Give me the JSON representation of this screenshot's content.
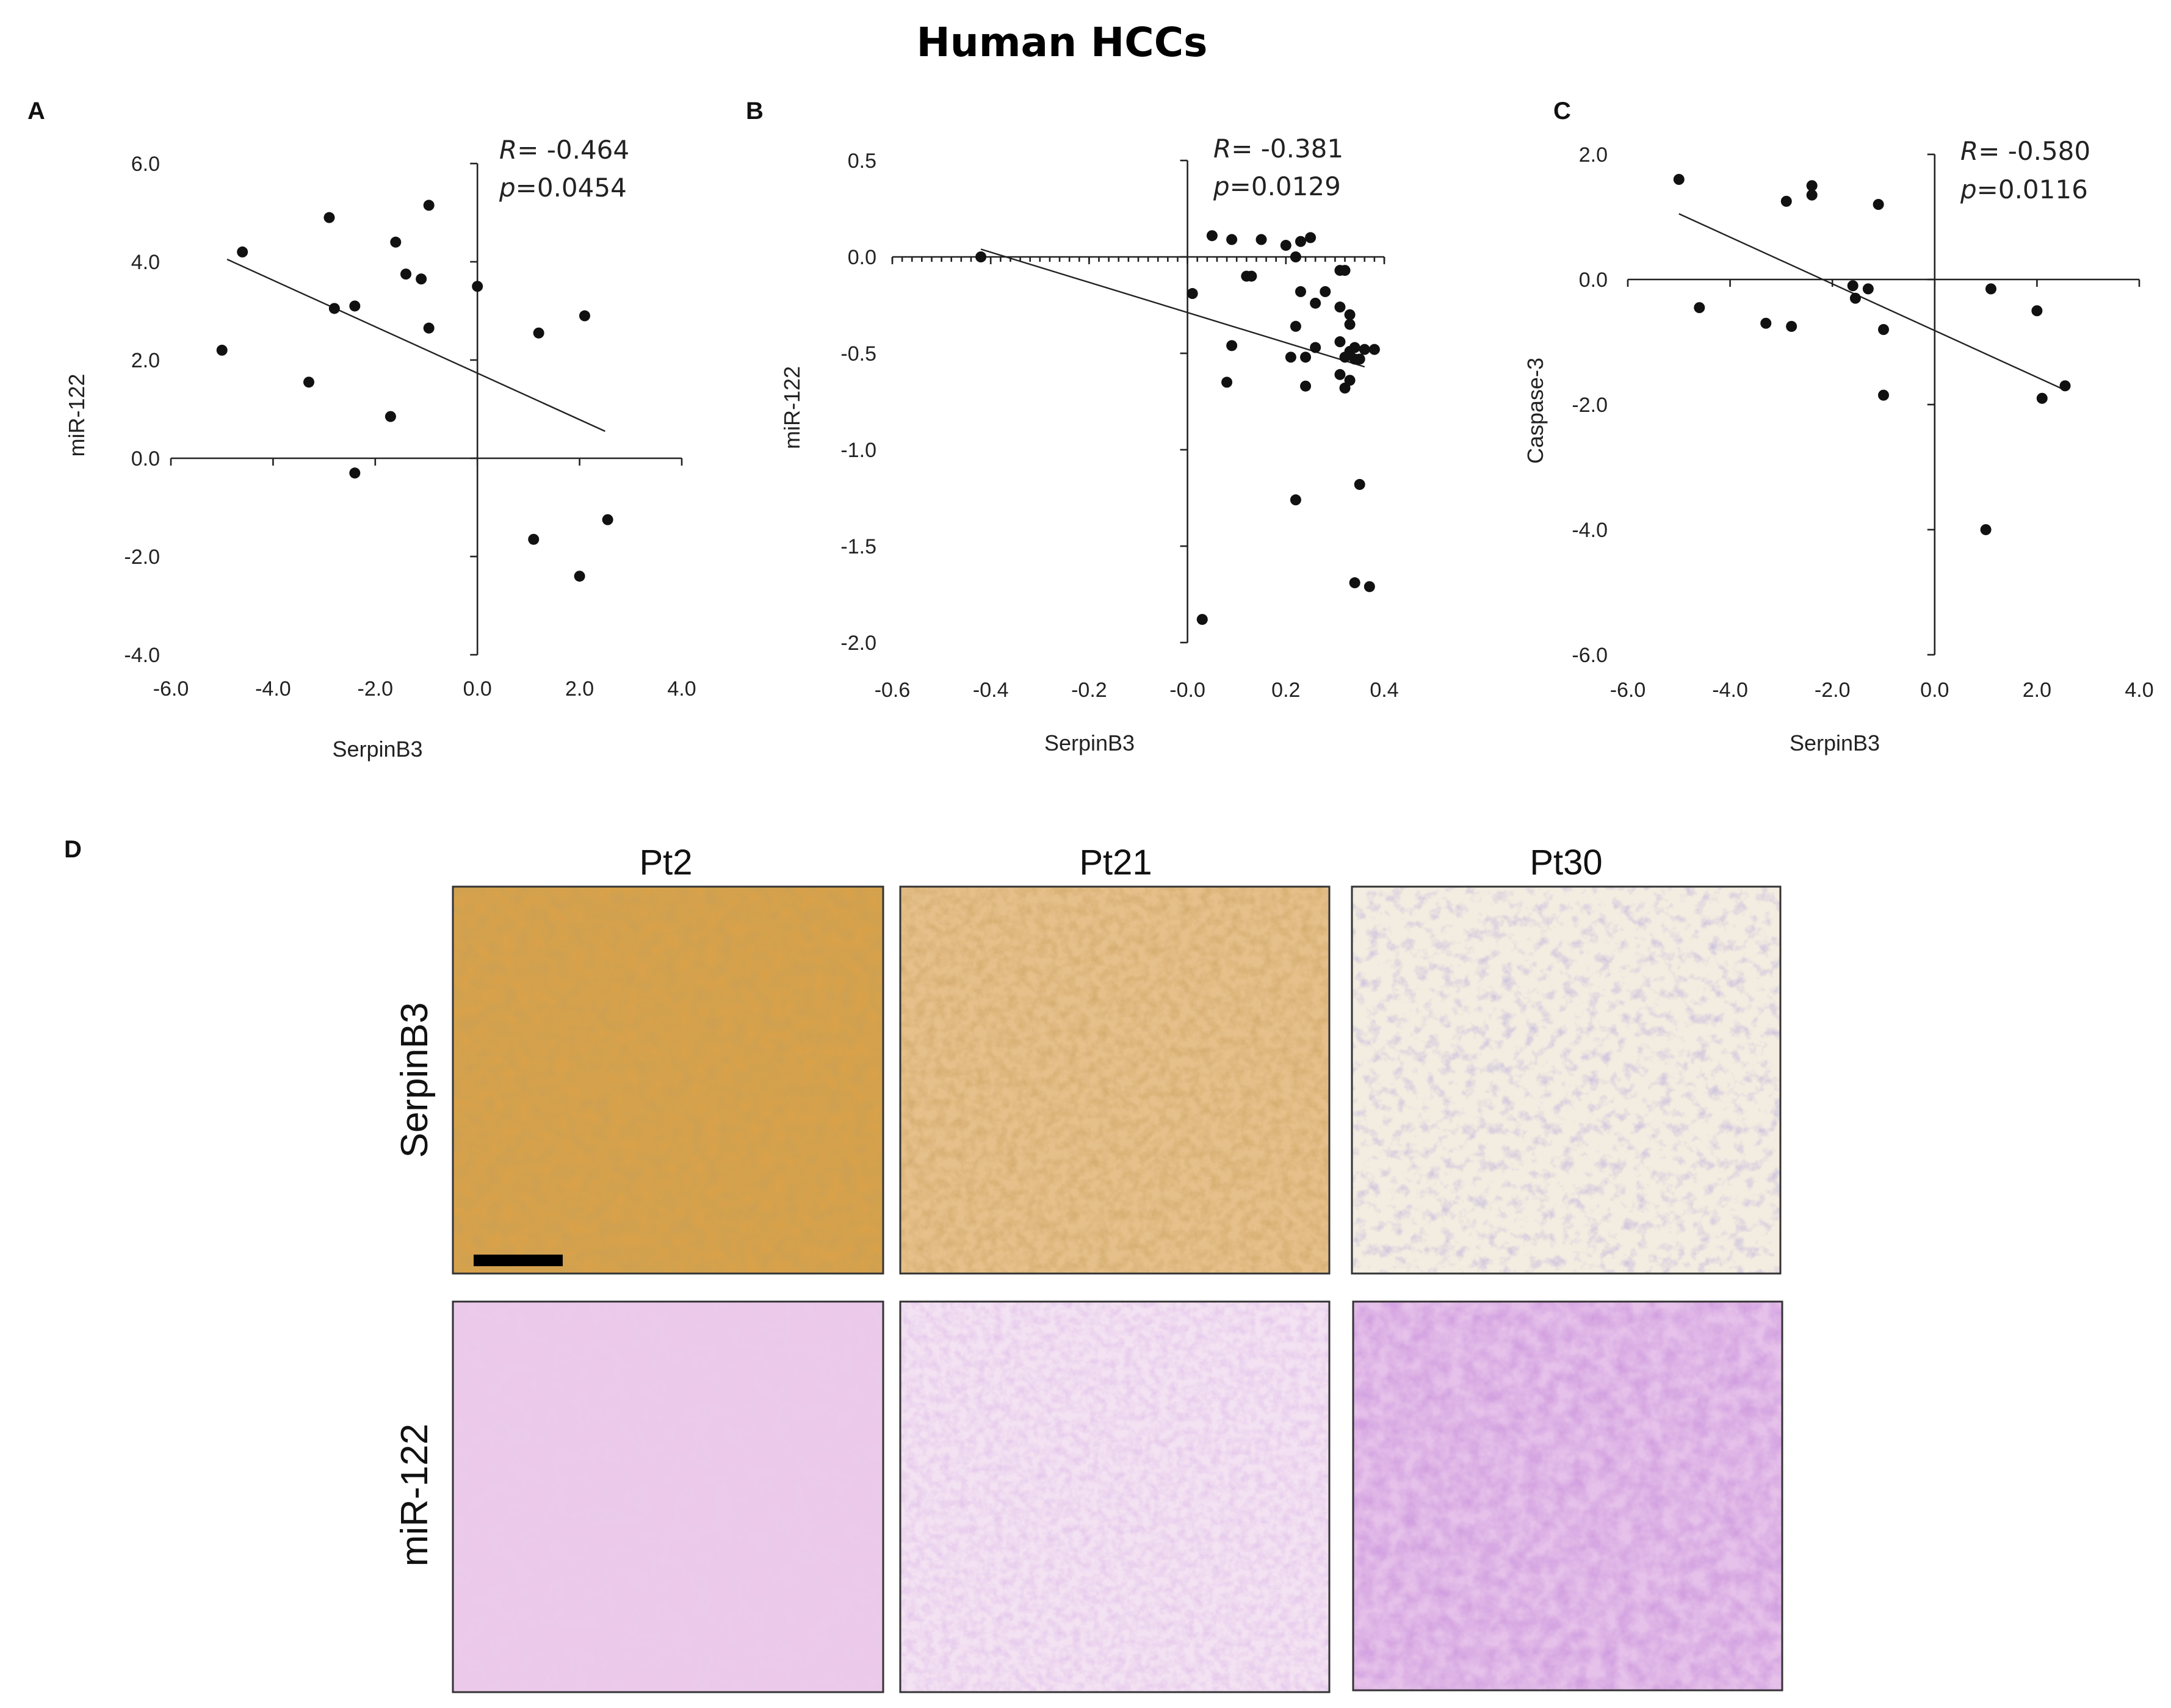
{
  "figure_title": "Human HCCs",
  "chart_data": [
    {
      "type": "scatter",
      "panel": "A",
      "title": "",
      "xlabel": "SerpinB3",
      "ylabel": "miR-122",
      "xlim": [
        -6.0,
        4.0
      ],
      "ylim": [
        -4.0,
        6.0
      ],
      "xticks": [
        "-6.0",
        "-4.0",
        "-2.0",
        "0.0",
        "2.0",
        "4.0"
      ],
      "xtick_values": [
        -6,
        -4,
        -2,
        0,
        2,
        4
      ],
      "yticks": [
        "6.0",
        "4.0",
        "2.0",
        "0.0",
        "-2.0",
        "-4.0"
      ],
      "ytick_values": [
        6,
        4,
        2,
        0,
        -2,
        -4
      ],
      "stats": {
        "r_label": "R",
        "r_value": "= -0.464",
        "p_label": "p",
        "p_value": "=0.0454"
      },
      "points": [
        {
          "x": -4.6,
          "y": 4.2
        },
        {
          "x": -2.9,
          "y": 4.9
        },
        {
          "x": -1.6,
          "y": 4.4
        },
        {
          "x": -0.95,
          "y": 5.15
        },
        {
          "x": -1.4,
          "y": 3.75
        },
        {
          "x": -1.1,
          "y": 3.65
        },
        {
          "x": 0.0,
          "y": 3.5
        },
        {
          "x": -2.8,
          "y": 3.05
        },
        {
          "x": -2.4,
          "y": 3.1
        },
        {
          "x": -0.95,
          "y": 2.65
        },
        {
          "x": 1.2,
          "y": 2.55
        },
        {
          "x": 2.1,
          "y": 2.9
        },
        {
          "x": -5.0,
          "y": 2.2
        },
        {
          "x": -3.3,
          "y": 1.55
        },
        {
          "x": -1.7,
          "y": 0.85
        },
        {
          "x": -2.4,
          "y": -0.3
        },
        {
          "x": 1.1,
          "y": -1.65
        },
        {
          "x": 2.55,
          "y": -1.25
        },
        {
          "x": 2.0,
          "y": -2.4
        }
      ],
      "fit": {
        "x1": -4.9,
        "y1": 4.05,
        "x2": 2.5,
        "y2": 0.55
      }
    },
    {
      "type": "scatter",
      "panel": "B",
      "title": "",
      "xlabel": "SerpinB3",
      "ylabel": "miR-122",
      "xlim": [
        -0.6,
        0.4
      ],
      "ylim": [
        -2.0,
        0.5
      ],
      "xticks": [
        "-0.6",
        "-0.4",
        "-0.2",
        "-0.0",
        "0.2",
        "0.4"
      ],
      "xtick_values": [
        -0.6,
        -0.4,
        -0.2,
        0.0,
        0.2,
        0.4
      ],
      "yticks": [
        "0.5",
        "0.0",
        "-0.5",
        "-1.0",
        "-1.5",
        "-2.0"
      ],
      "ytick_values": [
        0.5,
        0.0,
        -0.5,
        -1.0,
        -1.5,
        -2.0
      ],
      "stats": {
        "r_label": "R",
        "r_value": "= -0.381",
        "p_label": "p",
        "p_value": "=0.0129"
      },
      "points": [
        {
          "x": -0.42,
          "y": 0.0
        },
        {
          "x": 0.05,
          "y": 0.11
        },
        {
          "x": 0.09,
          "y": 0.09
        },
        {
          "x": 0.15,
          "y": 0.09
        },
        {
          "x": 0.2,
          "y": 0.06
        },
        {
          "x": 0.23,
          "y": 0.08
        },
        {
          "x": 0.25,
          "y": 0.1
        },
        {
          "x": 0.22,
          "y": 0.0
        },
        {
          "x": 0.01,
          "y": -0.19
        },
        {
          "x": 0.12,
          "y": -0.1
        },
        {
          "x": 0.13,
          "y": -0.1
        },
        {
          "x": 0.23,
          "y": -0.18
        },
        {
          "x": 0.28,
          "y": -0.18
        },
        {
          "x": 0.31,
          "y": -0.07
        },
        {
          "x": 0.32,
          "y": -0.07
        },
        {
          "x": 0.26,
          "y": -0.24
        },
        {
          "x": 0.31,
          "y": -0.26
        },
        {
          "x": 0.33,
          "y": -0.3
        },
        {
          "x": 0.33,
          "y": -0.35
        },
        {
          "x": 0.22,
          "y": -0.36
        },
        {
          "x": 0.09,
          "y": -0.46
        },
        {
          "x": 0.24,
          "y": -0.52
        },
        {
          "x": 0.26,
          "y": -0.47
        },
        {
          "x": 0.31,
          "y": -0.44
        },
        {
          "x": 0.34,
          "y": -0.47
        },
        {
          "x": 0.36,
          "y": -0.48
        },
        {
          "x": 0.38,
          "y": -0.48
        },
        {
          "x": 0.32,
          "y": -0.52
        },
        {
          "x": 0.34,
          "y": -0.53
        },
        {
          "x": 0.35,
          "y": -0.53
        },
        {
          "x": 0.33,
          "y": -0.49
        },
        {
          "x": 0.21,
          "y": -0.52
        },
        {
          "x": 0.31,
          "y": -0.61
        },
        {
          "x": 0.33,
          "y": -0.64
        },
        {
          "x": 0.32,
          "y": -0.68
        },
        {
          "x": 0.24,
          "y": -0.67
        },
        {
          "x": 0.08,
          "y": -0.65
        },
        {
          "x": 0.22,
          "y": -1.26
        },
        {
          "x": 0.35,
          "y": -1.18
        },
        {
          "x": 0.34,
          "y": -1.69
        },
        {
          "x": 0.37,
          "y": -1.71
        },
        {
          "x": 0.03,
          "y": -1.88
        }
      ],
      "fit": {
        "x1": -0.42,
        "y1": 0.04,
        "x2": 0.36,
        "y2": -0.57
      }
    },
    {
      "type": "scatter",
      "panel": "C",
      "title": "",
      "xlabel": "SerpinB3",
      "ylabel": "Caspase-3",
      "xlim": [
        -6.0,
        4.0
      ],
      "ylim": [
        -6.0,
        2.0
      ],
      "xticks": [
        "-6.0",
        "-4.0",
        "-2.0",
        "0.0",
        "2.0",
        "4.0"
      ],
      "xtick_values": [
        -6,
        -4,
        -2,
        0,
        2,
        4
      ],
      "yticks": [
        "2.0",
        "0.0",
        "-2.0",
        "-4.0",
        "-6.0"
      ],
      "ytick_values": [
        2,
        0,
        -2,
        -4,
        -6
      ],
      "stats": {
        "r_label": "R",
        "r_value": "= -0.580",
        "p_label": "p",
        "p_value": "=0.0116"
      },
      "points": [
        {
          "x": -5.0,
          "y": 1.6
        },
        {
          "x": -2.4,
          "y": 1.5
        },
        {
          "x": -2.4,
          "y": 1.35
        },
        {
          "x": -2.9,
          "y": 1.25
        },
        {
          "x": -1.1,
          "y": 1.2
        },
        {
          "x": -1.6,
          "y": -0.1
        },
        {
          "x": -1.3,
          "y": -0.15
        },
        {
          "x": -1.55,
          "y": -0.3
        },
        {
          "x": 1.1,
          "y": -0.15
        },
        {
          "x": -4.6,
          "y": -0.45
        },
        {
          "x": -3.3,
          "y": -0.7
        },
        {
          "x": -2.8,
          "y": -0.75
        },
        {
          "x": -1.0,
          "y": -0.8
        },
        {
          "x": 2.0,
          "y": -0.5
        },
        {
          "x": -1.0,
          "y": -1.85
        },
        {
          "x": 2.1,
          "y": -1.9
        },
        {
          "x": 2.55,
          "y": -1.7
        },
        {
          "x": 1.0,
          "y": -4.0
        }
      ],
      "fit": {
        "x1": -5.0,
        "y1": 1.05,
        "x2": 2.5,
        "y2": -1.75
      }
    }
  ],
  "panel_d": {
    "letter": "D",
    "columns": [
      "Pt2",
      "Pt21",
      "Pt30"
    ],
    "rows": [
      "SerpinB3",
      "miR-122"
    ]
  }
}
